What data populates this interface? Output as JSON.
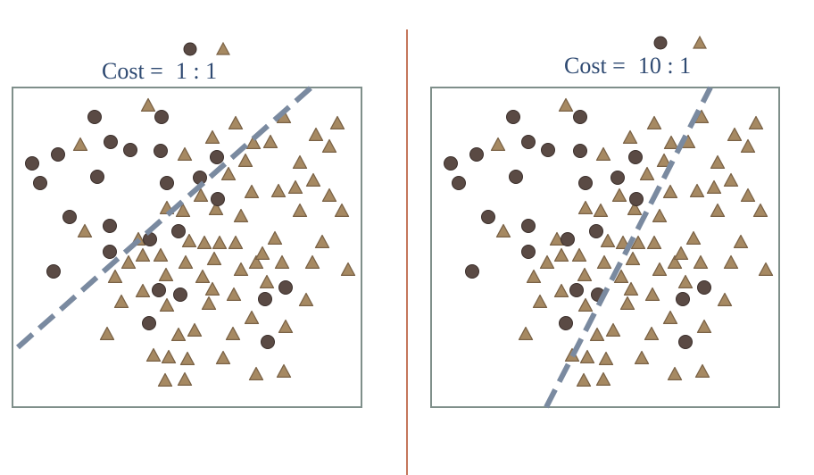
{
  "colors": {
    "circle_fill": "#5a4a44",
    "circle_stroke": "#3b2f2b",
    "triangle_fill": "#a68962",
    "triangle_stroke": "#7a6246",
    "box_border": "#7f8f8a",
    "separator": "#b04a26",
    "boundary": "#7a8aa0",
    "title_text": "#2f4a72"
  },
  "panels": [
    {
      "title_prefix": "Cost =",
      "title_ratio": "1 : 1",
      "legend": [
        "circle-icon",
        "triangle-icon"
      ]
    },
    {
      "title_prefix": "Cost =",
      "title_ratio": "10 : 1",
      "legend": [
        "circle-icon",
        "triangle-icon"
      ]
    }
  ]
}
